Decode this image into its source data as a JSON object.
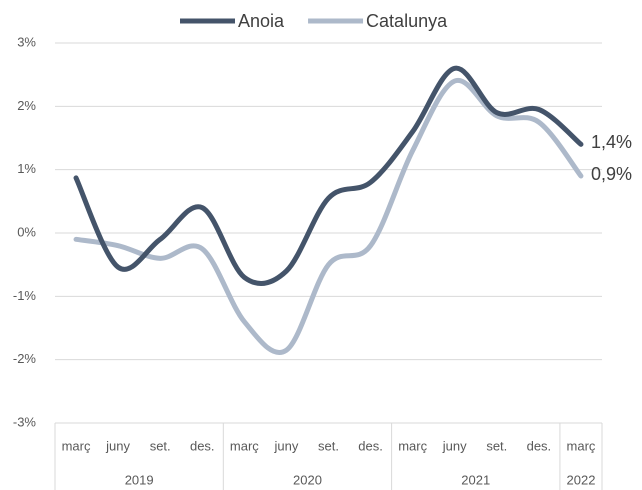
{
  "chart_data": {
    "type": "line",
    "categories": [
      "març",
      "juny",
      "set.",
      "des.",
      "març",
      "juny",
      "set.",
      "des.",
      "març",
      "juny",
      "set.",
      "des.",
      "març"
    ],
    "x_groups": [
      {
        "label": "2019",
        "span": 4
      },
      {
        "label": "2020",
        "span": 4
      },
      {
        "label": "2021",
        "span": 4
      },
      {
        "label": "2022",
        "span": 1
      }
    ],
    "series": [
      {
        "name": "Anoia",
        "color": "#44546a",
        "values": [
          0.87,
          -0.54,
          -0.1,
          0.4,
          -0.7,
          -0.6,
          0.55,
          0.8,
          1.6,
          2.6,
          1.9,
          1.95,
          1.4
        ],
        "value_labels": [
          null,
          null,
          null,
          null,
          null,
          null,
          null,
          null,
          null,
          null,
          null,
          null,
          "1,4%"
        ]
      },
      {
        "name": "Catalunya",
        "color": "#adb9ca",
        "values": [
          -0.1,
          -0.2,
          -0.4,
          -0.25,
          -1.4,
          -1.85,
          -0.5,
          -0.2,
          1.3,
          2.4,
          1.85,
          1.75,
          0.9
        ],
        "value_labels": [
          null,
          null,
          null,
          null,
          null,
          null,
          null,
          null,
          null,
          null,
          null,
          null,
          "0,9%"
        ]
      }
    ],
    "ylim": [
      -3,
      3
    ],
    "yticks": [
      {
        "value": -3,
        "label": "-3%"
      },
      {
        "value": -2,
        "label": "-2%"
      },
      {
        "value": -1,
        "label": "-1%"
      },
      {
        "value": 0,
        "label": "0%"
      },
      {
        "value": 1,
        "label": "1%"
      },
      {
        "value": 2,
        "label": "2%"
      },
      {
        "value": 3,
        "label": "3%"
      }
    ],
    "grid": true,
    "legend": "top"
  }
}
